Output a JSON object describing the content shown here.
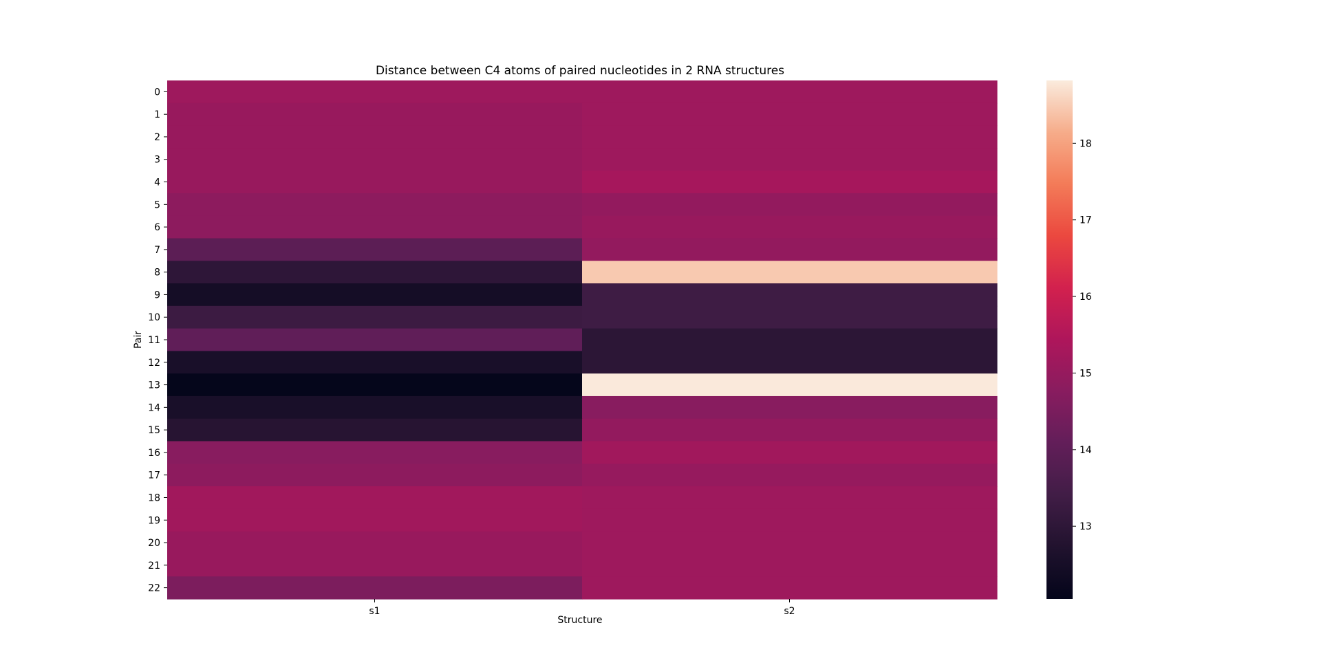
{
  "chart_data": {
    "type": "heatmap",
    "title": "Distance between C4 atoms of paired nucleotides in 2 RNA structures",
    "xlabel": "Structure",
    "ylabel": "Pair",
    "x_categories": [
      "s1",
      "s2"
    ],
    "y_categories": [
      "0",
      "1",
      "2",
      "3",
      "4",
      "5",
      "6",
      "7",
      "8",
      "9",
      "10",
      "11",
      "12",
      "13",
      "14",
      "15",
      "16",
      "17",
      "18",
      "19",
      "20",
      "21",
      "22"
    ],
    "values": [
      [
        15.15,
        15.15
      ],
      [
        15.05,
        15.15
      ],
      [
        15.05,
        15.15
      ],
      [
        15.05,
        15.15
      ],
      [
        15.05,
        15.3
      ],
      [
        14.85,
        14.95
      ],
      [
        14.85,
        15.05
      ],
      [
        13.95,
        14.95
      ],
      [
        13.0,
        18.45
      ],
      [
        12.45,
        13.35
      ],
      [
        13.3,
        13.35
      ],
      [
        14.05,
        12.95
      ],
      [
        12.55,
        12.95
      ],
      [
        12.1,
        18.8
      ],
      [
        12.55,
        14.75
      ],
      [
        12.85,
        14.95
      ],
      [
        14.75,
        15.2
      ],
      [
        14.85,
        15.0
      ],
      [
        15.2,
        15.15
      ],
      [
        15.2,
        15.15
      ],
      [
        15.05,
        15.15
      ],
      [
        15.05,
        15.15
      ],
      [
        14.55,
        15.15
      ]
    ],
    "colorbar": {
      "min": 12.05,
      "max": 18.82,
      "ticks": [
        13,
        14,
        15,
        16,
        17,
        18
      ],
      "colormap": "rocket"
    }
  }
}
